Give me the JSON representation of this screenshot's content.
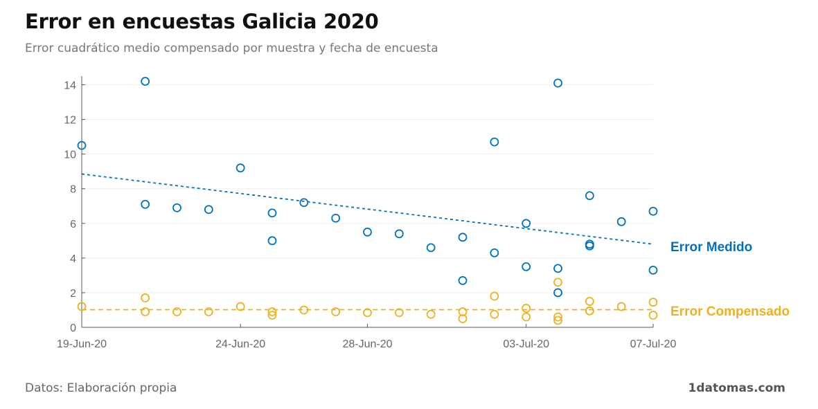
{
  "title": "Error en encuestas Galicia 2020",
  "subtitle": "Error cuadrático medio compensado por muestra y fecha de encuesta",
  "footer": {
    "source": "Datos: Elaboración propia",
    "brand": "1datomas.com"
  },
  "colors": {
    "medido": "#0072bd",
    "compensado": "#edb120",
    "axis": "#555555",
    "grid": "#eeeeee"
  },
  "chart_data": {
    "type": "scatter",
    "title": "Error en encuestas Galicia 2020",
    "subtitle": "Error cuadrático medio compensado por muestra y fecha de encuesta",
    "xlabel": "",
    "ylabel": "",
    "xlim": [
      "2020-06-19",
      "2020-07-07"
    ],
    "ylim": [
      0,
      14.5
    ],
    "x_ticks": [
      "19-Jun-20",
      "24-Jun-20",
      "28-Jun-20",
      "03-Jul-20",
      "07-Jul-20"
    ],
    "x_tick_dates": [
      "2020-06-19",
      "2020-06-24",
      "2020-06-28",
      "2020-07-03",
      "2020-07-07"
    ],
    "y_ticks": [
      0,
      2,
      4,
      6,
      8,
      10,
      12,
      14
    ],
    "grid": true,
    "series": [
      {
        "name": "Error Medido",
        "color": "#0072bd",
        "points": [
          {
            "x": "2020-06-19",
            "y": 10.5
          },
          {
            "x": "2020-06-21",
            "y": 14.2
          },
          {
            "x": "2020-06-21",
            "y": 7.1
          },
          {
            "x": "2020-06-22",
            "y": 6.9
          },
          {
            "x": "2020-06-23",
            "y": 6.8
          },
          {
            "x": "2020-06-24",
            "y": 9.2
          },
          {
            "x": "2020-06-25",
            "y": 6.6
          },
          {
            "x": "2020-06-25",
            "y": 5.0
          },
          {
            "x": "2020-06-26",
            "y": 7.2
          },
          {
            "x": "2020-06-27",
            "y": 6.3
          },
          {
            "x": "2020-06-28",
            "y": 5.5
          },
          {
            "x": "2020-06-29",
            "y": 5.4
          },
          {
            "x": "2020-06-30",
            "y": 4.6
          },
          {
            "x": "2020-07-01",
            "y": 5.2
          },
          {
            "x": "2020-07-01",
            "y": 2.7
          },
          {
            "x": "2020-07-02",
            "y": 10.7
          },
          {
            "x": "2020-07-02",
            "y": 4.3
          },
          {
            "x": "2020-07-03",
            "y": 6.0
          },
          {
            "x": "2020-07-03",
            "y": 3.5
          },
          {
            "x": "2020-07-04",
            "y": 14.1
          },
          {
            "x": "2020-07-04",
            "y": 3.4
          },
          {
            "x": "2020-07-04",
            "y": 2.0
          },
          {
            "x": "2020-07-05",
            "y": 7.6
          },
          {
            "x": "2020-07-05",
            "y": 4.8
          },
          {
            "x": "2020-07-05",
            "y": 4.7
          },
          {
            "x": "2020-07-06",
            "y": 6.1
          },
          {
            "x": "2020-07-07",
            "y": 6.7
          },
          {
            "x": "2020-07-07",
            "y": 3.3
          }
        ],
        "trend": [
          {
            "x": "2020-06-19",
            "y": 8.85
          },
          {
            "x": "2020-07-07",
            "y": 4.8
          }
        ]
      },
      {
        "name": "Error Compensado",
        "color": "#edb120",
        "points": [
          {
            "x": "2020-06-19",
            "y": 1.2
          },
          {
            "x": "2020-06-21",
            "y": 1.7
          },
          {
            "x": "2020-06-21",
            "y": 0.9
          },
          {
            "x": "2020-06-22",
            "y": 0.9
          },
          {
            "x": "2020-06-23",
            "y": 0.9
          },
          {
            "x": "2020-06-24",
            "y": 1.2
          },
          {
            "x": "2020-06-25",
            "y": 0.9
          },
          {
            "x": "2020-06-25",
            "y": 0.7
          },
          {
            "x": "2020-06-26",
            "y": 1.0
          },
          {
            "x": "2020-06-27",
            "y": 0.9
          },
          {
            "x": "2020-06-28",
            "y": 0.85
          },
          {
            "x": "2020-06-29",
            "y": 0.85
          },
          {
            "x": "2020-06-30",
            "y": 0.75
          },
          {
            "x": "2020-07-01",
            "y": 0.9
          },
          {
            "x": "2020-07-01",
            "y": 0.5
          },
          {
            "x": "2020-07-02",
            "y": 1.8
          },
          {
            "x": "2020-07-02",
            "y": 0.75
          },
          {
            "x": "2020-07-03",
            "y": 1.1
          },
          {
            "x": "2020-07-03",
            "y": 0.6
          },
          {
            "x": "2020-07-04",
            "y": 2.6
          },
          {
            "x": "2020-07-04",
            "y": 0.6
          },
          {
            "x": "2020-07-04",
            "y": 0.4
          },
          {
            "x": "2020-07-05",
            "y": 1.5
          },
          {
            "x": "2020-07-05",
            "y": 0.95
          },
          {
            "x": "2020-07-05",
            "y": 0.95
          },
          {
            "x": "2020-07-06",
            "y": 1.2
          },
          {
            "x": "2020-07-07",
            "y": 1.45
          },
          {
            "x": "2020-07-07",
            "y": 0.7
          }
        ],
        "trend": [
          {
            "x": "2020-06-19",
            "y": 1.02
          },
          {
            "x": "2020-07-07",
            "y": 1.02
          }
        ]
      }
    ]
  }
}
